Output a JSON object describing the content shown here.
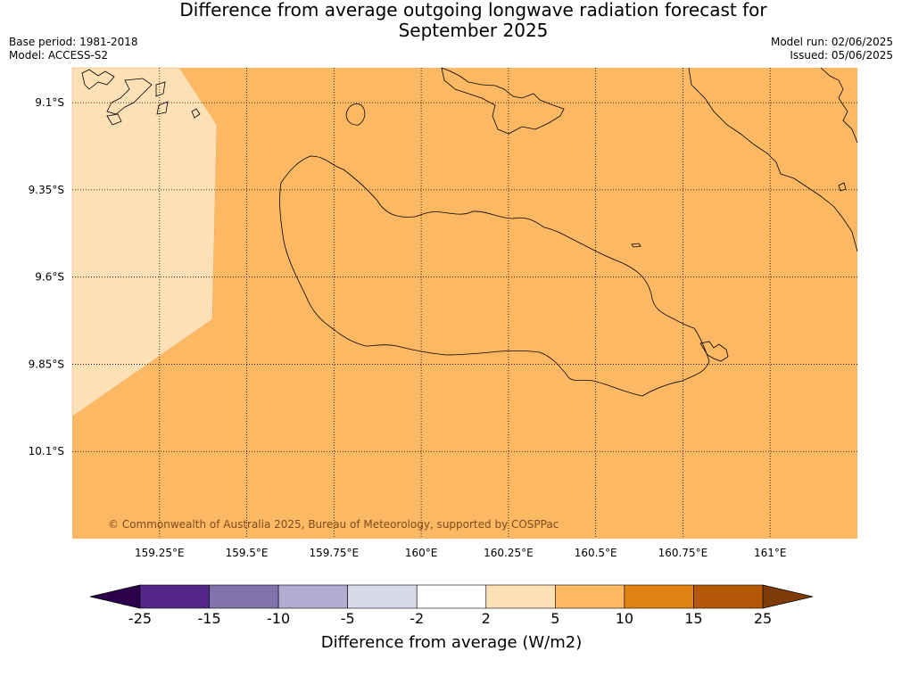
{
  "title_line1": "Difference from average outgoing longwave radiation forecast for",
  "title_line2": "September 2025",
  "base_period": "Base period: 1981-2018",
  "model": "Model: ACCESS-S2",
  "model_run": "Model run: 02/06/2025",
  "issued": "Issued: 05/06/2025",
  "copyright": "© Commonwealth of Australia 2025, Bureau of Meteorology, supported by COSPPac",
  "map": {
    "lon_ticks": [
      {
        "value": 159.25,
        "label": "159.25°E"
      },
      {
        "value": 159.5,
        "label": "159.5°E"
      },
      {
        "value": 159.75,
        "label": "159.75°E"
      },
      {
        "value": 160.0,
        "label": "160°E"
      },
      {
        "value": 160.25,
        "label": "160.25°E"
      },
      {
        "value": 160.5,
        "label": "160.5°E"
      },
      {
        "value": 160.75,
        "label": "160.75°E"
      },
      {
        "value": 161.0,
        "label": "161°E"
      }
    ],
    "lat_ticks": [
      {
        "value": -9.1,
        "label": "9.1°S"
      },
      {
        "value": -9.35,
        "label": "9.35°S"
      },
      {
        "value": -9.6,
        "label": "9.6°S"
      },
      {
        "value": -9.85,
        "label": "9.85°S"
      },
      {
        "value": -10.1,
        "label": "10.1°S"
      }
    ],
    "lon_range": [
      159.0,
      161.25
    ],
    "lat_range": [
      -10.35,
      -9.0
    ],
    "background_class_color": "#fdb863",
    "region_class_color": "#fee0b6"
  },
  "colorbar": {
    "label": "Difference from average (W/m2)",
    "ticks": [
      "-25",
      "-15",
      "-10",
      "-5",
      "-2",
      "2",
      "5",
      "10",
      "15",
      "25"
    ],
    "low_extend_color": "#2d004b",
    "high_extend_color": "#7f3b08",
    "colors": [
      "#542788",
      "#8073ac",
      "#b2abd2",
      "#d8daeb",
      "#ffffff",
      "#fee0b6",
      "#fdb863",
      "#e08214",
      "#b35806"
    ]
  }
}
